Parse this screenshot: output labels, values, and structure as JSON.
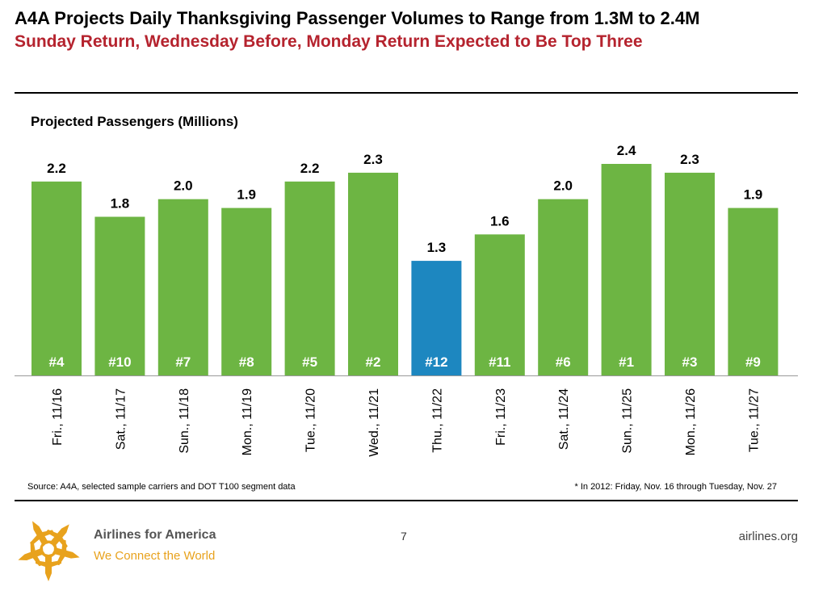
{
  "header": {
    "title": "A4A Projects Daily Thanksgiving Passenger Volumes to Range from 1.3M to 2.4M",
    "subtitle": "Sunday Return, Wednesday Before, Monday Return Expected to Be Top Three"
  },
  "chart_data": {
    "type": "bar",
    "title": "Projected Passengers (Millions)",
    "xlabel": "",
    "ylabel": "",
    "categories": [
      "Fri., 11/16",
      "Sat., 11/17",
      "Sun., 11/18",
      "Mon., 11/19",
      "Tue., 11/20",
      "Wed., 11/21",
      "Thu., 11/22",
      "Fri., 11/23",
      "Sat., 11/24",
      "Sun., 11/25",
      "Mon., 11/26",
      "Tue., 11/27"
    ],
    "values": [
      2.2,
      1.8,
      2.0,
      1.9,
      2.2,
      2.3,
      1.3,
      1.6,
      2.0,
      2.4,
      2.3,
      1.9
    ],
    "value_labels": [
      "2.2",
      "1.8",
      "2.0",
      "1.9",
      "2.2",
      "2.3",
      "1.3",
      "1.6",
      "2.0",
      "2.4",
      "2.3",
      "1.9"
    ],
    "ranks": [
      "#4",
      "#10",
      "#7",
      "#8",
      "#5",
      "#2",
      "#12",
      "#11",
      "#6",
      "#1",
      "#3",
      "#9"
    ],
    "highlight_index": 6,
    "ylim": [
      0,
      2.4
    ],
    "grid": false,
    "colors": {
      "bar": "#6db543",
      "highlight": "#1d87c0",
      "rank_text": "#ffffff"
    }
  },
  "footer": {
    "source": "Source: A4A, selected sample carriers and DOT T100 segment data",
    "note": "* In 2012: Friday, Nov. 16 through Tuesday, Nov. 27",
    "brand_name": "Airlines for America",
    "brand_tagline": "We Connect the World",
    "page_number": "7",
    "website": "airlines.org"
  },
  "logo": {
    "icon": "airlines-for-america-logo-icon",
    "colors": [
      "#e8a21d",
      "#b5232e",
      "#8a8a8a",
      "#1d87c0",
      "#6db543"
    ]
  }
}
